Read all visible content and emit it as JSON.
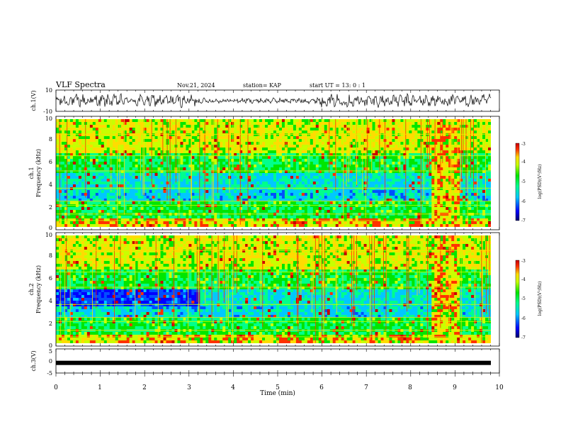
{
  "header": {
    "title": "VLF Spectra",
    "date": "Nov.21, 2024",
    "station": "station= KAP",
    "start": "start UT = 13: 0 : 1"
  },
  "colors": {
    "colormap": [
      "#00006e",
      "#0000ff",
      "#0050ff",
      "#00c8ff",
      "#00ff8c",
      "#00e600",
      "#c8ff00",
      "#ffdc00",
      "#ff3200",
      "#c80000"
    ]
  },
  "chart_data": [
    {
      "type": "line",
      "ylabel": "ch.1(V)",
      "yticks": [
        "10",
        "-10"
      ],
      "ylim": [
        -10,
        10
      ],
      "xlim": [
        0,
        10
      ]
    },
    {
      "type": "heatmap",
      "ylabel_line1": "ch.1",
      "ylabel_line2": "Frequency (kHz)",
      "yticks": [
        "0",
        "2",
        "4",
        "6",
        "8",
        "10"
      ],
      "ylim": [
        0,
        10
      ],
      "xlim": [
        0,
        10
      ],
      "colorbar": {
        "label": "log(PSD)(V²/Hz)",
        "ticks": [
          "-3",
          "-4",
          "-5",
          "-6",
          "-7"
        ],
        "range": [
          -7,
          -3
        ]
      }
    },
    {
      "type": "heatmap",
      "ylabel_line1": "ch.2",
      "ylabel_line2": "Frequency (kHz)",
      "yticks": [
        "0",
        "2",
        "4",
        "6",
        "8",
        "10"
      ],
      "ylim": [
        0,
        10
      ],
      "xlim": [
        0,
        10
      ],
      "colorbar": {
        "label": "log(PSD)(V²/Hz)",
        "ticks": [
          "-3",
          "-4",
          "-5",
          "-6",
          "-7"
        ],
        "range": [
          -7,
          -3
        ]
      }
    },
    {
      "type": "line",
      "ylabel": "ch.3(V)",
      "yticks": [
        "5",
        "0",
        "-5"
      ],
      "ylim": [
        -5,
        5
      ],
      "xlim": [
        0,
        10
      ],
      "level": -0.8,
      "xlabel": "Time (min)",
      "xticks": [
        "0",
        "1",
        "2",
        "3",
        "4",
        "5",
        "6",
        "7",
        "8",
        "9",
        "10"
      ]
    }
  ]
}
